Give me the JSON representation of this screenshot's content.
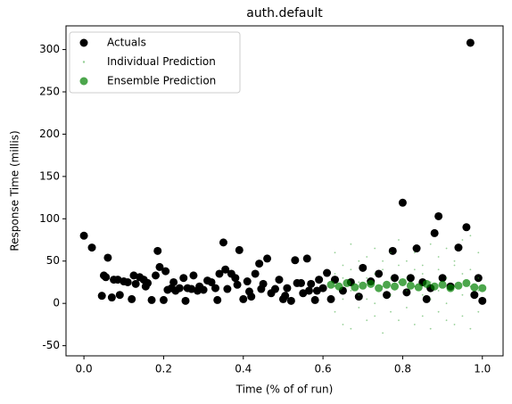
{
  "chart_data": {
    "type": "scatter",
    "title": "auth.default",
    "x_label": "Time (% of of run)",
    "y_label": "Response Time (millis)",
    "xlim": [
      -0.045,
      1.052
    ],
    "ylim": [
      -62,
      328
    ],
    "xticks": [
      {
        "value": 0,
        "label": "0.0"
      },
      0.2,
      0.4,
      0.6,
      0.8,
      {
        "value": 1,
        "label": "1.0"
      }
    ],
    "yticks": [
      -50,
      0,
      50,
      100,
      150,
      200,
      250,
      300
    ],
    "legend": "upper left",
    "series": [
      {
        "name": "Actuals",
        "color": "#000000",
        "x": [
          0.0,
          0.02,
          0.045,
          0.05,
          0.055,
          0.06,
          0.07,
          0.075,
          0.085,
          0.09,
          0.1,
          0.11,
          0.12,
          0.125,
          0.13,
          0.14,
          0.15,
          0.155,
          0.16,
          0.17,
          0.18,
          0.185,
          0.19,
          0.2,
          0.205,
          0.21,
          0.22,
          0.225,
          0.23,
          0.24,
          0.25,
          0.255,
          0.26,
          0.27,
          0.275,
          0.285,
          0.29,
          0.3,
          0.31,
          0.32,
          0.33,
          0.335,
          0.34,
          0.35,
          0.355,
          0.36,
          0.37,
          0.38,
          0.385,
          0.39,
          0.4,
          0.41,
          0.415,
          0.42,
          0.43,
          0.44,
          0.445,
          0.45,
          0.46,
          0.47,
          0.48,
          0.49,
          0.5,
          0.505,
          0.51,
          0.52,
          0.53,
          0.535,
          0.545,
          0.55,
          0.56,
          0.565,
          0.57,
          0.58,
          0.585,
          0.59,
          0.6,
          0.61,
          0.62,
          0.63,
          0.65,
          0.67,
          0.69,
          0.7,
          0.72,
          0.74,
          0.76,
          0.775,
          0.78,
          0.8,
          0.81,
          0.82,
          0.835,
          0.85,
          0.86,
          0.87,
          0.88,
          0.89,
          0.9,
          0.92,
          0.94,
          0.96,
          0.97,
          0.98,
          0.99,
          1.0
        ],
        "values": [
          80,
          66,
          9,
          33,
          31,
          54,
          7,
          28,
          28,
          10,
          26,
          25,
          5,
          33,
          23,
          31,
          28,
          20,
          24,
          4,
          33,
          62,
          43,
          4,
          38,
          16,
          18,
          25,
          15,
          18,
          30,
          3,
          18,
          17,
          33,
          15,
          20,
          16,
          27,
          25,
          18,
          4,
          35,
          72,
          40,
          17,
          35,
          30,
          22,
          63,
          5,
          26,
          14,
          8,
          35,
          47,
          17,
          23,
          53,
          12,
          17,
          28,
          5,
          9,
          18,
          3,
          51,
          24,
          24,
          12,
          53,
          15,
          23,
          4,
          15,
          28,
          18,
          36,
          5,
          28,
          15,
          25,
          8,
          42,
          26,
          35,
          10,
          62,
          30,
          119,
          13,
          30,
          65,
          25,
          5,
          18,
          83,
          103,
          30,
          20,
          66,
          90,
          308,
          10,
          30,
          3
        ]
      },
      {
        "name": "Individual Prediction",
        "color": "#2ca02c",
        "x": [
          0.63,
          0.63,
          0.63,
          0.63,
          0.65,
          0.65,
          0.65,
          0.65,
          0.67,
          0.67,
          0.67,
          0.67,
          0.69,
          0.69,
          0.69,
          0.69,
          0.71,
          0.71,
          0.71,
          0.71,
          0.73,
          0.73,
          0.73,
          0.73,
          0.75,
          0.75,
          0.75,
          0.75,
          0.77,
          0.77,
          0.77,
          0.77,
          0.79,
          0.79,
          0.79,
          0.79,
          0.81,
          0.81,
          0.81,
          0.81,
          0.83,
          0.83,
          0.83,
          0.83,
          0.85,
          0.85,
          0.85,
          0.85,
          0.87,
          0.87,
          0.87,
          0.87,
          0.89,
          0.89,
          0.89,
          0.89,
          0.91,
          0.91,
          0.91,
          0.91,
          0.93,
          0.93,
          0.93,
          0.93,
          0.95,
          0.95,
          0.95,
          0.95,
          0.97,
          0.97,
          0.97,
          0.97,
          0.99,
          0.99,
          0.99,
          0.99
        ],
        "values": [
          60,
          20,
          -10,
          35,
          45,
          5,
          30,
          -25,
          70,
          15,
          -30,
          40,
          50,
          25,
          -5,
          10,
          55,
          -20,
          30,
          5,
          65,
          0,
          35,
          -15,
          40,
          20,
          -35,
          50,
          60,
          10,
          -10,
          30,
          75,
          25,
          -20,
          45,
          50,
          -5,
          30,
          15,
          60,
          20,
          -25,
          40,
          45,
          10,
          -15,
          35,
          70,
          25,
          -30,
          5,
          55,
          15,
          -10,
          40,
          65,
          0,
          30,
          -20,
          50,
          20,
          -25,
          45,
          75,
          10,
          35,
          -15,
          80,
          20,
          -30,
          40,
          60,
          15,
          -10,
          30
        ]
      },
      {
        "name": "Ensemble Prediction",
        "color": "#008000",
        "x": [
          0.62,
          0.64,
          0.66,
          0.68,
          0.7,
          0.72,
          0.74,
          0.76,
          0.78,
          0.8,
          0.82,
          0.84,
          0.86,
          0.88,
          0.9,
          0.92,
          0.94,
          0.96,
          0.98,
          1.0
        ],
        "values": [
          22,
          20,
          24,
          19,
          21,
          23,
          18,
          22,
          20,
          25,
          21,
          19,
          23,
          20,
          22,
          18,
          21,
          24,
          19,
          18
        ]
      }
    ]
  }
}
